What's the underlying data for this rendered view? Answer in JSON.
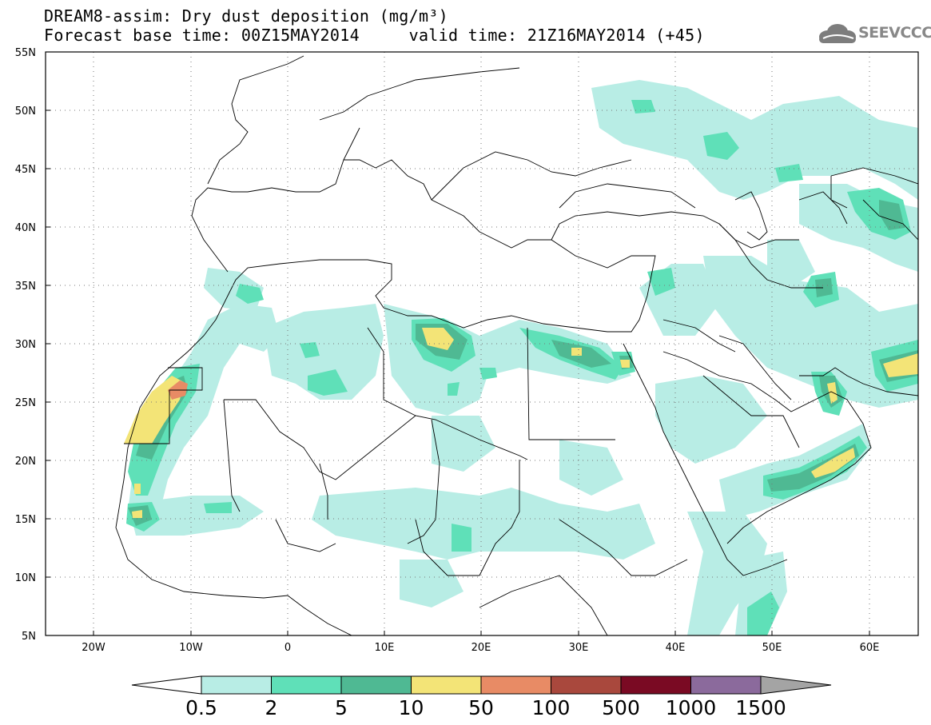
{
  "header": {
    "title_line1": "DREAM8-assim: Dry dust deposition (mg/m³)",
    "title_line2": "Forecast base time: 00Z15MAY2014     valid time: 21Z16MAY2014 (+45)",
    "logo_text": "SEEVCCC",
    "logo_icon": "cloud-icon"
  },
  "map": {
    "lon_range": [
      -25,
      65
    ],
    "lat_range": [
      5,
      55
    ],
    "lat_ticks": [
      "55N",
      "50N",
      "45N",
      "40N",
      "35N",
      "30N",
      "25N",
      "20N",
      "15N",
      "10N",
      "5N"
    ],
    "lon_ticks": [
      "20W",
      "10W",
      "0",
      "10E",
      "20E",
      "30E",
      "40E",
      "50E",
      "60E"
    ],
    "grid": "dotted",
    "colors": {
      "c1": "#b8ede5",
      "c2": "#5fe0b8",
      "c3": "#4fb993",
      "c4": "#f3e477",
      "c5": "#e88b65",
      "c6": "#a9483d",
      "c7": "#7a0a23",
      "c8": "#8b6a9c",
      "c9": "#a4a4a4"
    }
  },
  "colorbar": {
    "labels": [
      "0.5",
      "2",
      "5",
      "10",
      "50",
      "100",
      "500",
      "1000",
      "1500"
    ],
    "colors": [
      "#b8ede5",
      "#5fe0b8",
      "#4fb993",
      "#f3e477",
      "#e88b65",
      "#a9483d",
      "#7a0a23",
      "#8b6a9c"
    ],
    "over_color": "#a4a4a4",
    "under_color": "#ffffff"
  }
}
